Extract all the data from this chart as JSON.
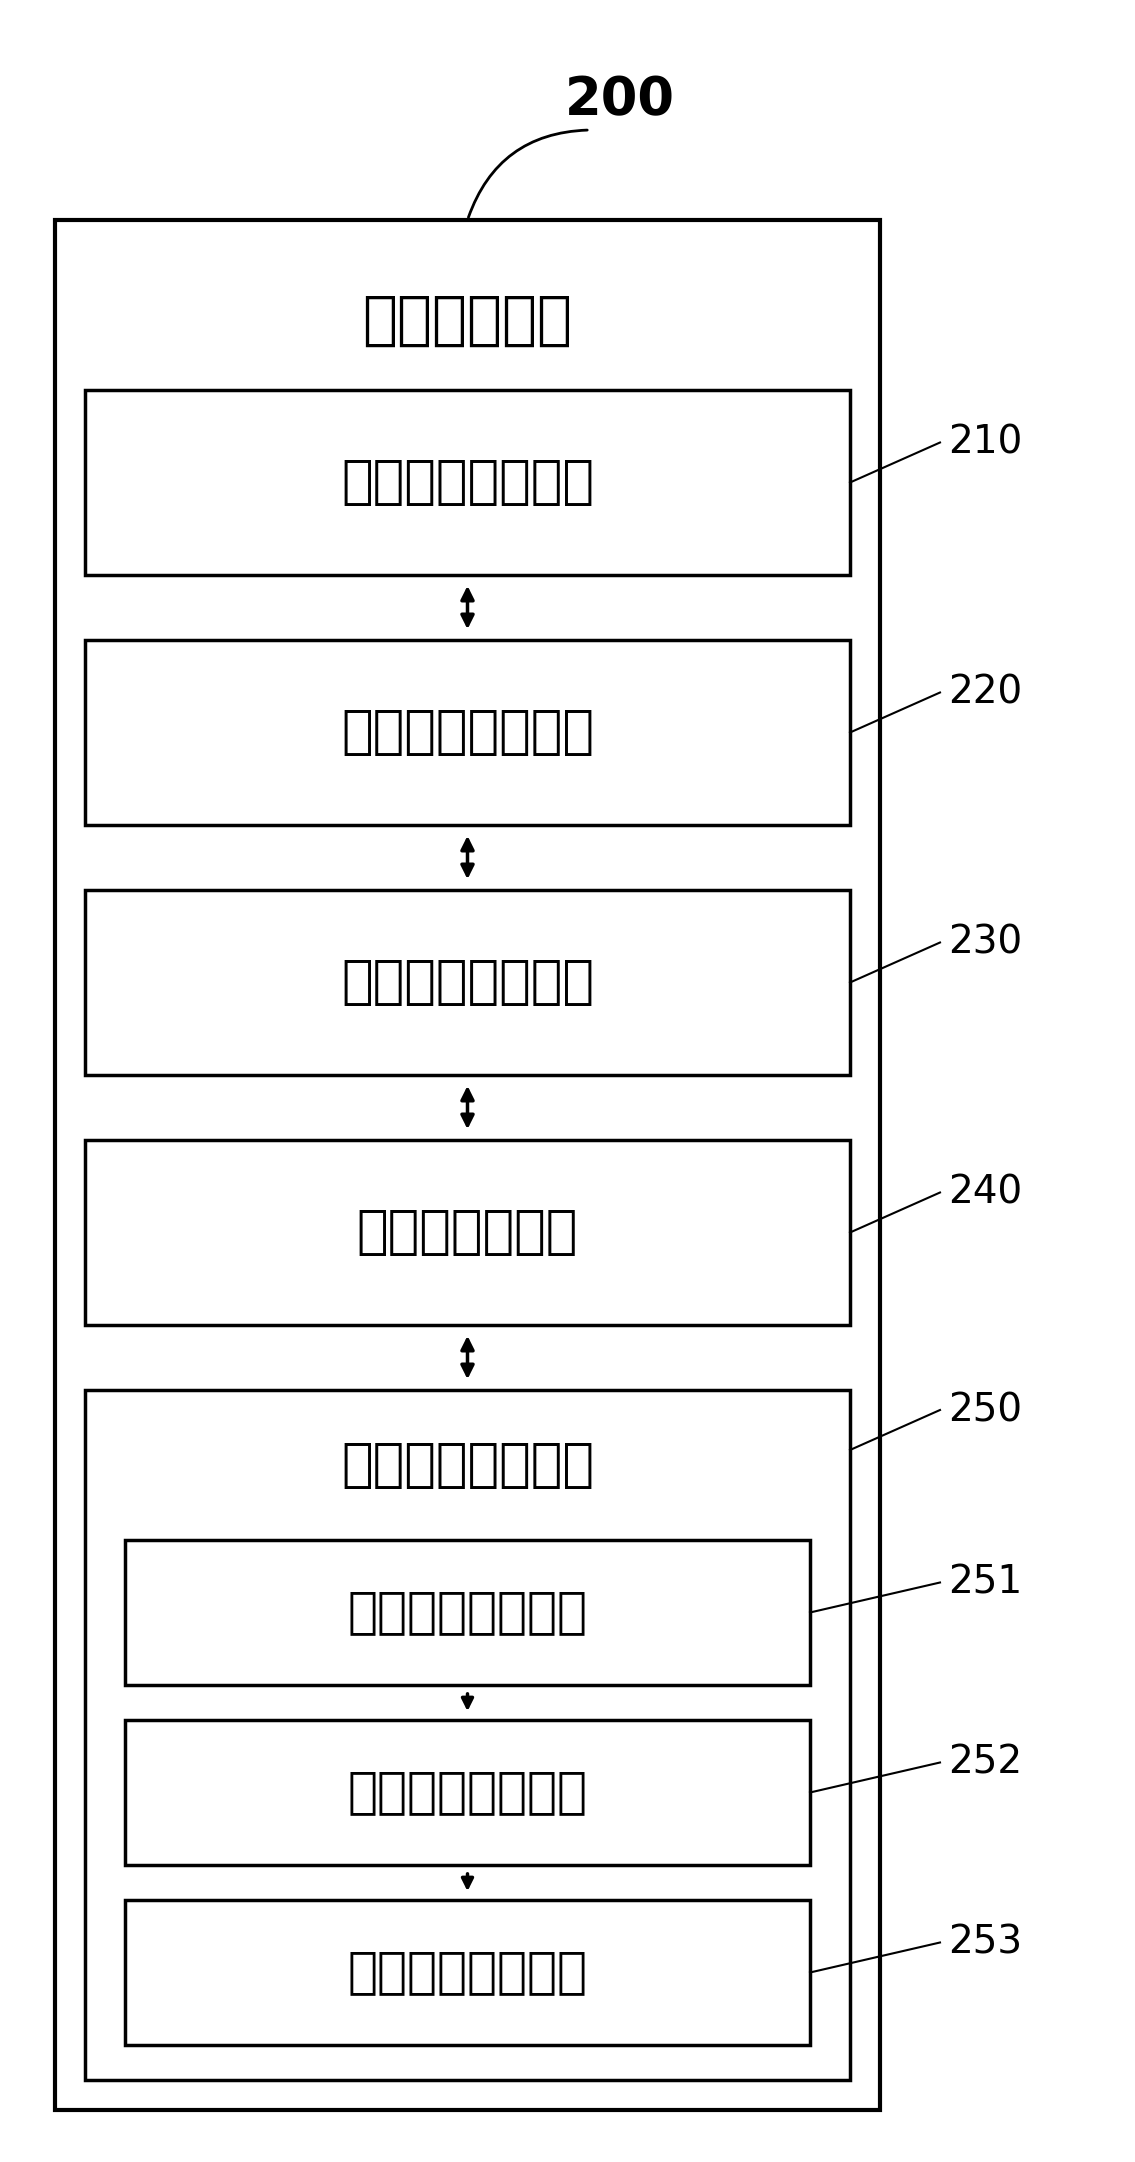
{
  "title_num": "200",
  "outer_box_label": "路线规划装置",
  "blocks": [
    {
      "label": "初始位姿获取模块",
      "ref": "210"
    },
    {
      "label": "先验地图创建模块",
      "ref": "220"
    },
    {
      "label": "全局路线计算模块",
      "ref": "230"
    },
    {
      "label": "障碍物探测模块",
      "ref": "240"
    }
  ],
  "avoid_block": {
    "label": "避障路线规划模块",
    "ref": "250"
  },
  "sub_blocks": [
    {
      "label": "环境模型建立单元",
      "ref": "251"
    },
    {
      "label": "局部路径计算单元",
      "ref": "252"
    },
    {
      "label": "环境模型更新单元",
      "ref": "253"
    }
  ],
  "bg_color": "#ffffff",
  "box_color": "#000000",
  "text_color": "#000000"
}
